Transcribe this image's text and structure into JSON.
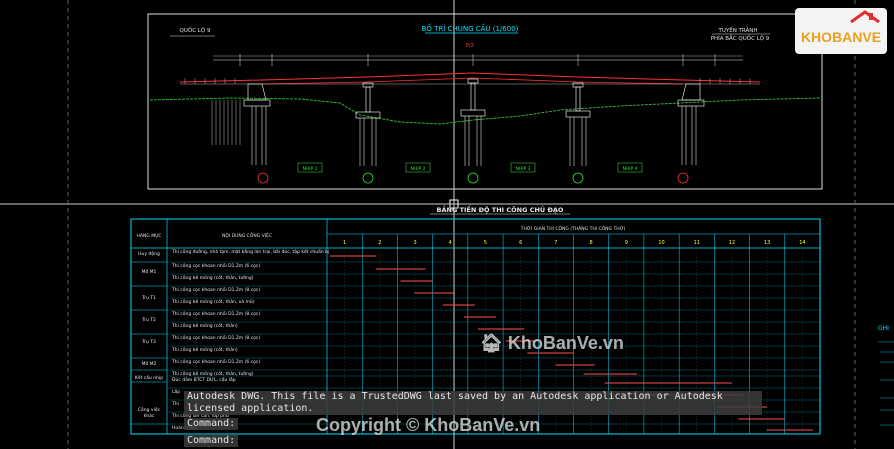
{
  "drawing": {
    "title": "BỐ TRÍ CHUNG CẦU (1/600)",
    "left_label": "QUỐC LỘ 9",
    "right_label_1": "TUYẾN TRÁNH",
    "right_label_2": "PHÍA BẮC QUỐC LỘ 9",
    "center_mark": "P/2",
    "span_labels": [
      "NHỊP 1",
      "NHỊP 2",
      "NHỊP 3",
      "NHỊP 4"
    ]
  },
  "schedule": {
    "title": "BẢNG TIẾN ĐỘ THI CÔNG CHỦ ĐẠO",
    "col_item": "HẠNG MỤC",
    "col_content": "NỘI DUNG CÔNG VIỆC",
    "col_time": "THỜI GIAN THI CÔNG (THÁNG THI CÔNG THỨ)",
    "months": [
      "1",
      "2",
      "3",
      "4",
      "5",
      "6",
      "7",
      "8",
      "9",
      "10",
      "11",
      "12",
      "13",
      "14"
    ],
    "items": [
      "Huy động",
      "Mố M1",
      "Trụ T1",
      "Trụ T2",
      "Trụ T3",
      "Mố M2",
      "Kết cấu nhịp",
      "Công việc khác"
    ],
    "tasks": [
      "Thi công đường, nhà tạm, mặt bằng lán trại, bãi đúc, tập kết chuẩn bị",
      "Thi công cọc khoan nhồi D1.2m (6 cọc)",
      "Thi công bệ móng (cốt, thân, tường)",
      "Thi công cọc khoan nhồi D1.2m (8 cọc)",
      "Thi công bệ móng (cốt, thân, xà mũ)",
      "Thi công cọc khoan nhồi D1.2m (8 cọc)",
      "Thi công bệ móng (cốt, thân)",
      "Thi công cọc khoan nhồi D1.2m (8 cọc)",
      "Thi công bệ móng (cốt, thân)",
      "Thi công cọc khoan nhồi D1.2m (6 cọc)",
      "Thi công bệ móng (cốt, thân, tường)",
      "Đúc dầm BTCT DƯL, cẩu lắp",
      "Lắp",
      "Thi",
      "Thi công lan can, lớp phủ",
      "Hoàn thiện"
    ]
  },
  "command_line": {
    "message": "Autodesk DWG.  This file is a TrustedDWG last saved by an Autodesk application or Autodesk licensed application.",
    "prompt1": "Command:",
    "prompt2": "Command:"
  },
  "watermarks": {
    "center": "KhoBanVe.vn",
    "copyright": "Copyright © KhoBanVe.vn",
    "logo_text": "KHOBANVE"
  },
  "side_label": "GHI"
}
